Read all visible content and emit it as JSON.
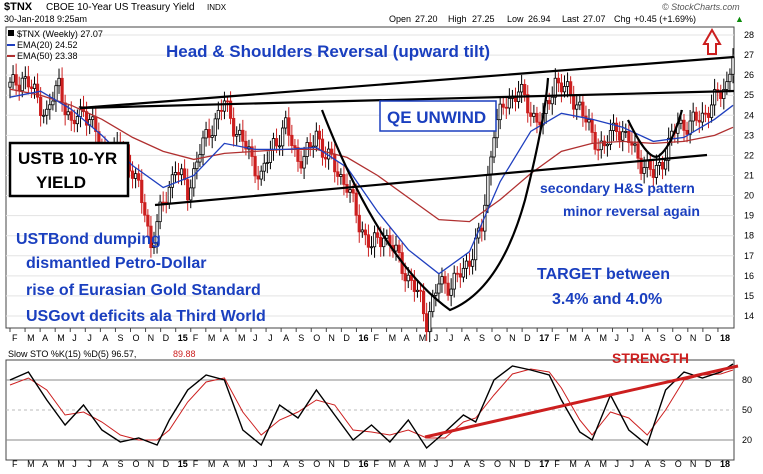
{
  "header": {
    "symbol": "$TNX",
    "description": "CBOE 10-Year US Treasury Yield",
    "exchange": "INDX",
    "date_time": "30-Jan-2018 9:25am",
    "open_label": "Open",
    "open": "27.20",
    "high_label": "High",
    "high": "27.25",
    "low_label": "Low",
    "low": "26.94",
    "last_label": "Last",
    "last": "27.07",
    "chg_label": "Chg",
    "chg": "+0.45 (+1.69%)",
    "brand": "© StockCharts.com"
  },
  "legend": [
    {
      "label": "$TNX (Weekly) 27.07",
      "color": "#000000"
    },
    {
      "label": "EMA(20) 24.52",
      "color": "#1f3fbf"
    },
    {
      "label": "EMA(50) 23.38",
      "color": "#b03030"
    }
  ],
  "annotations": {
    "pattern_title": "Head & Shoulders Reversal (upward tilt)",
    "qe": "QE UNWIND",
    "box_line1": "USTB 10-YR",
    "box_line2": "YIELD",
    "secondary1": "secondary H&S pattern",
    "secondary2": "minor reversal again",
    "dumping": [
      "USTBond dumping",
      "dismantled Petro-Dollar",
      "rise of Eurasian Gold Standard",
      "USGovt deficits ala Third World"
    ],
    "target1": "TARGET between",
    "target2": "3.4% and 4.0%",
    "strength": "STRENGTH"
  },
  "sto_legend": {
    "label": "Slow STO %K(15) %D(5) 96.57,",
    "value2": "89.88"
  },
  "colors": {
    "title_blue": "#1a3fbf",
    "price_up": "#000000",
    "price_down": "#cc1f1f",
    "ema20": "#1f3fbf",
    "ema50": "#b03030",
    "strength_red": "#cc1f1f",
    "arrow_red": "#cc1f1f"
  },
  "month_labels": [
    "F",
    "M",
    "A",
    "M",
    "J",
    "J",
    "A",
    "S",
    "O",
    "N",
    "D",
    "15",
    "F",
    "M",
    "A",
    "M",
    "J",
    "J",
    "A",
    "S",
    "O",
    "N",
    "D",
    "16",
    "F",
    "M",
    "A",
    "M",
    "J",
    "J",
    "A",
    "S",
    "O",
    "N",
    "D",
    "17",
    "F",
    "M",
    "A",
    "M",
    "J",
    "J",
    "A",
    "S",
    "O",
    "N",
    "D",
    "18"
  ],
  "chart_data": {
    "type": "candlestick",
    "price_axis_ticks": [
      14,
      15,
      16,
      17,
      18,
      19,
      20,
      21,
      22,
      23,
      24,
      25,
      26,
      27,
      28
    ],
    "ylim": [
      13.4,
      28.4
    ],
    "sto_axis_ticks": [
      20,
      50,
      80
    ],
    "sto_ylim": [
      0,
      100
    ],
    "weekly_close_path": [
      [
        0,
        25.4
      ],
      [
        4,
        25.9
      ],
      [
        8,
        25.1
      ],
      [
        12,
        24.0
      ],
      [
        16,
        25.6
      ],
      [
        20,
        23.4
      ],
      [
        24,
        24.4
      ],
      [
        28,
        23.1
      ],
      [
        32,
        21.5
      ],
      [
        36,
        22.6
      ],
      [
        40,
        21.2
      ],
      [
        44,
        19.3
      ],
      [
        46,
        17.5
      ],
      [
        50,
        19.6
      ],
      [
        54,
        21.4
      ],
      [
        58,
        20.2
      ],
      [
        62,
        22.2
      ],
      [
        66,
        23.5
      ],
      [
        70,
        24.6
      ],
      [
        74,
        23.2
      ],
      [
        78,
        22.1
      ],
      [
        82,
        20.9
      ],
      [
        86,
        22.6
      ],
      [
        90,
        23.4
      ],
      [
        94,
        21.8
      ],
      [
        98,
        22.2
      ],
      [
        100,
        23.2
      ],
      [
        102,
        22.3
      ],
      [
        106,
        21.4
      ],
      [
        110,
        20.5
      ],
      [
        114,
        18.6
      ],
      [
        118,
        17.4
      ],
      [
        122,
        18.1
      ],
      [
        126,
        17.1
      ],
      [
        130,
        15.9
      ],
      [
        134,
        14.8
      ],
      [
        136,
        13.8
      ],
      [
        140,
        15.6
      ],
      [
        144,
        15.6
      ],
      [
        148,
        16.2
      ],
      [
        152,
        17.6
      ],
      [
        154,
        18.3
      ],
      [
        158,
        23.4
      ],
      [
        162,
        24.6
      ],
      [
        166,
        25.3
      ],
      [
        170,
        24.1
      ],
      [
        174,
        23.7
      ],
      [
        178,
        25.8
      ],
      [
        182,
        25.1
      ],
      [
        186,
        24.5
      ],
      [
        190,
        22.9
      ],
      [
        194,
        22.4
      ],
      [
        198,
        23.5
      ],
      [
        202,
        22.7
      ],
      [
        206,
        21.7
      ],
      [
        210,
        21.0
      ],
      [
        214,
        22.1
      ],
      [
        218,
        23.6
      ],
      [
        222,
        23.5
      ],
      [
        226,
        24.0
      ],
      [
        230,
        24.7
      ],
      [
        234,
        25.6
      ],
      [
        236,
        27.1
      ]
    ],
    "ema20_path": [
      [
        0,
        24.9
      ],
      [
        10,
        25.2
      ],
      [
        20,
        24.3
      ],
      [
        30,
        23.0
      ],
      [
        40,
        21.5
      ],
      [
        50,
        20.4
      ],
      [
        60,
        21.0
      ],
      [
        70,
        22.6
      ],
      [
        80,
        22.3
      ],
      [
        90,
        22.3
      ],
      [
        100,
        22.4
      ],
      [
        110,
        21.4
      ],
      [
        120,
        19.2
      ],
      [
        130,
        17.3
      ],
      [
        140,
        16.1
      ],
      [
        150,
        17.2
      ],
      [
        160,
        20.7
      ],
      [
        170,
        23.2
      ],
      [
        180,
        24.1
      ],
      [
        190,
        23.8
      ],
      [
        200,
        23.4
      ],
      [
        210,
        22.7
      ],
      [
        220,
        22.9
      ],
      [
        230,
        23.8
      ],
      [
        236,
        24.5
      ]
    ],
    "ema50_path": [
      [
        0,
        25.3
      ],
      [
        10,
        25.0
      ],
      [
        20,
        24.5
      ],
      [
        30,
        23.8
      ],
      [
        40,
        22.9
      ],
      [
        50,
        22.2
      ],
      [
        60,
        21.8
      ],
      [
        70,
        22.1
      ],
      [
        80,
        22.2
      ],
      [
        90,
        22.3
      ],
      [
        100,
        22.3
      ],
      [
        110,
        21.9
      ],
      [
        120,
        21.0
      ],
      [
        130,
        19.9
      ],
      [
        140,
        18.8
      ],
      [
        150,
        18.7
      ],
      [
        160,
        19.8
      ],
      [
        170,
        21.1
      ],
      [
        180,
        22.2
      ],
      [
        190,
        22.6
      ],
      [
        200,
        22.7
      ],
      [
        210,
        22.6
      ],
      [
        220,
        22.7
      ],
      [
        230,
        23.0
      ],
      [
        236,
        23.4
      ]
    ],
    "sto_k_path": [
      [
        0,
        80
      ],
      [
        6,
        88
      ],
      [
        12,
        60
      ],
      [
        18,
        35
      ],
      [
        24,
        55
      ],
      [
        30,
        30
      ],
      [
        36,
        18
      ],
      [
        42,
        22
      ],
      [
        48,
        15
      ],
      [
        52,
        40
      ],
      [
        58,
        70
      ],
      [
        64,
        85
      ],
      [
        70,
        80
      ],
      [
        76,
        30
      ],
      [
        82,
        15
      ],
      [
        88,
        55
      ],
      [
        94,
        42
      ],
      [
        100,
        70
      ],
      [
        106,
        45
      ],
      [
        112,
        20
      ],
      [
        118,
        35
      ],
      [
        124,
        18
      ],
      [
        130,
        40
      ],
      [
        136,
        12
      ],
      [
        142,
        28
      ],
      [
        148,
        45
      ],
      [
        152,
        38
      ],
      [
        158,
        80
      ],
      [
        164,
        94
      ],
      [
        170,
        90
      ],
      [
        176,
        85
      ],
      [
        180,
        60
      ],
      [
        186,
        28
      ],
      [
        190,
        20
      ],
      [
        196,
        65
      ],
      [
        202,
        30
      ],
      [
        208,
        15
      ],
      [
        214,
        70
      ],
      [
        220,
        88
      ],
      [
        226,
        82
      ],
      [
        232,
        88
      ],
      [
        236,
        96
      ]
    ],
    "sto_d_path": [
      [
        0,
        75
      ],
      [
        6,
        82
      ],
      [
        12,
        70
      ],
      [
        18,
        45
      ],
      [
        24,
        48
      ],
      [
        30,
        38
      ],
      [
        36,
        25
      ],
      [
        42,
        20
      ],
      [
        48,
        20
      ],
      [
        52,
        30
      ],
      [
        58,
        58
      ],
      [
        64,
        78
      ],
      [
        70,
        82
      ],
      [
        76,
        48
      ],
      [
        82,
        25
      ],
      [
        88,
        40
      ],
      [
        94,
        48
      ],
      [
        100,
        60
      ],
      [
        106,
        55
      ],
      [
        112,
        30
      ],
      [
        118,
        28
      ],
      [
        124,
        25
      ],
      [
        130,
        30
      ],
      [
        136,
        22
      ],
      [
        142,
        22
      ],
      [
        148,
        38
      ],
      [
        152,
        42
      ],
      [
        158,
        65
      ],
      [
        164,
        86
      ],
      [
        170,
        91
      ],
      [
        176,
        88
      ],
      [
        180,
        72
      ],
      [
        186,
        40
      ],
      [
        190,
        25
      ],
      [
        196,
        48
      ],
      [
        202,
        42
      ],
      [
        208,
        25
      ],
      [
        214,
        50
      ],
      [
        220,
        80
      ],
      [
        226,
        85
      ],
      [
        232,
        86
      ],
      [
        236,
        90
      ]
    ]
  }
}
